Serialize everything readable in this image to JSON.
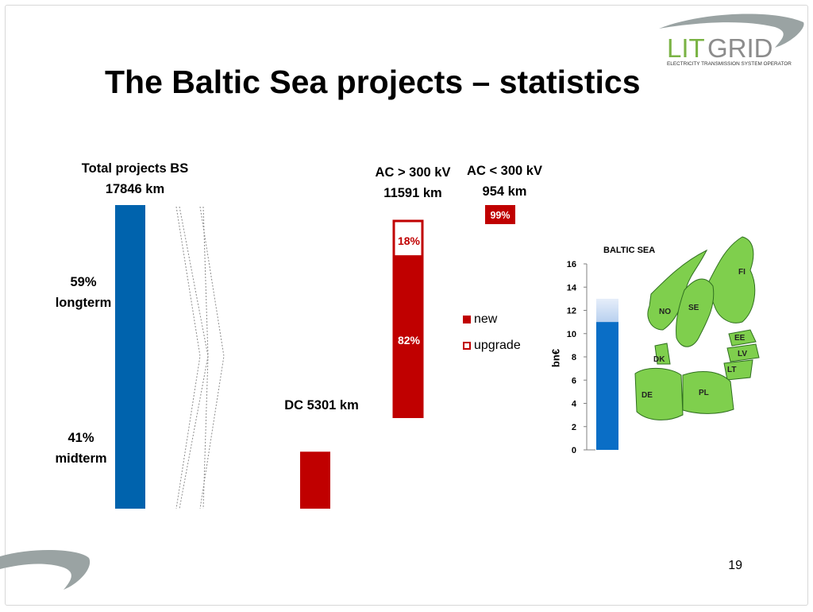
{
  "slide": {
    "title": "The Baltic Sea projects – statistics",
    "page_number": "19"
  },
  "logo": {
    "brand_lit": "LIT",
    "brand_grid": "GRID",
    "tagline": "ELECTRICITY TRANSMISSION SYSTEM OPERATOR"
  },
  "colors": {
    "blue": "#0063ad",
    "red": "#c00000",
    "map_green": "#7fcf4d",
    "bar_blue": "#0a6ec6",
    "bar_light": "#b8d0ef"
  },
  "chart_data": [
    {
      "type": "bar",
      "title": "Total projects BS",
      "value_label": "17846 km",
      "total_km": 17846,
      "segments": [
        {
          "pct": 59,
          "label_pct": "59%",
          "label": "longterm"
        },
        {
          "pct": 41,
          "label_pct": "41%",
          "label": "midterm"
        }
      ]
    },
    {
      "type": "bar",
      "title": "DC 5301 km",
      "total_km": 5301
    },
    {
      "type": "bar",
      "title": "AC > 300 kV",
      "value_label": "11591 km",
      "total_km": 11591,
      "series": [
        {
          "name": "new",
          "pct": 82,
          "label": "82%"
        },
        {
          "name": "upgrade",
          "pct": 18,
          "label": "18%"
        }
      ]
    },
    {
      "type": "bar",
      "title": "AC < 300 kV",
      "value_label": "954 km",
      "total_km": 954,
      "series": [
        {
          "name": "new",
          "pct": 99,
          "label": "99%"
        }
      ]
    },
    {
      "type": "bar",
      "ylabel": "bn€",
      "ylim": [
        0,
        16
      ],
      "yticks": [
        "0",
        "2",
        "4",
        "6",
        "8",
        "10",
        "12",
        "14",
        "16"
      ],
      "values": [
        11,
        13
      ]
    }
  ],
  "legend": {
    "items": [
      {
        "name": "new"
      },
      {
        "name": "upgrade"
      }
    ]
  },
  "map": {
    "title": "BALTIC SEA",
    "countries": [
      "FI",
      "NO",
      "SE",
      "EE",
      "LV",
      "LT",
      "DK",
      "DE",
      "PL"
    ]
  }
}
